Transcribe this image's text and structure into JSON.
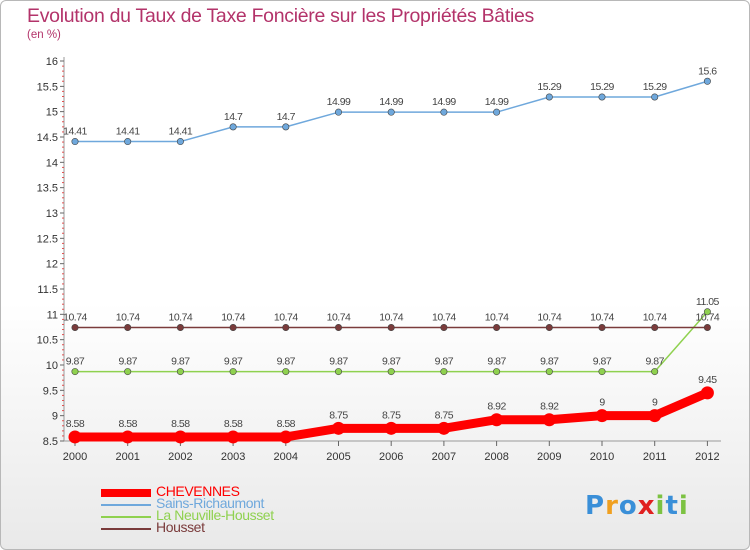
{
  "header": {
    "title": "Evolution du Taux de Taxe Foncière sur les Propriétés Bâties",
    "unit": "(en %)"
  },
  "chart_data": {
    "type": "line",
    "title": "Evolution du Taux de Taxe Foncière sur les Propriétés Bâties",
    "ylabel": "(en %)",
    "xlabel": "",
    "ylim": [
      8.5,
      16
    ],
    "yticks": [
      "8.5",
      "9",
      "9.5",
      "10",
      "10.5",
      "11",
      "11.5",
      "12",
      "12.5",
      "13",
      "13.5",
      "14",
      "14.5",
      "15",
      "15.5",
      "16"
    ],
    "x": [
      "2000",
      "2001",
      "2002",
      "2003",
      "2004",
      "2005",
      "2006",
      "2007",
      "2008",
      "2009",
      "2010",
      "2011",
      "2012"
    ],
    "series": [
      {
        "name": "CHEVENNES",
        "color": "#ff0000",
        "values": [
          8.58,
          8.58,
          8.58,
          8.58,
          8.58,
          8.75,
          8.75,
          8.75,
          8.92,
          8.92,
          9,
          9,
          9.45
        ],
        "labels": [
          "8.58",
          "8.58",
          "8.58",
          "8.58",
          "8.58",
          "8.75",
          "8.75",
          "8.75",
          "8.92",
          "8.92",
          "9",
          "9",
          "9.45"
        ]
      },
      {
        "name": "Sains-Richaumont",
        "color": "#6fa8dc",
        "values": [
          14.41,
          14.41,
          14.41,
          14.7,
          14.7,
          14.99,
          14.99,
          14.99,
          14.99,
          15.29,
          15.29,
          15.29,
          15.6
        ],
        "labels": [
          "14.41",
          "14.41",
          "14.41",
          "14.7",
          "14.7",
          "14.99",
          "14.99",
          "14.99",
          "14.99",
          "15.29",
          "15.29",
          "15.29",
          "15.6"
        ]
      },
      {
        "name": "La Neuville-Housset",
        "color": "#8fd14f",
        "values": [
          9.87,
          9.87,
          9.87,
          9.87,
          9.87,
          9.87,
          9.87,
          9.87,
          9.87,
          9.87,
          9.87,
          9.87,
          11.05
        ],
        "labels": [
          "9.87",
          "9.87",
          "9.87",
          "9.87",
          "9.87",
          "9.87",
          "9.87",
          "9.87",
          "9.87",
          "9.87",
          "9.87",
          "9.87",
          "11.05"
        ]
      },
      {
        "name": "Housset",
        "color": "#7a3b3b",
        "values": [
          10.74,
          10.74,
          10.74,
          10.74,
          10.74,
          10.74,
          10.74,
          10.74,
          10.74,
          10.74,
          10.74,
          10.74,
          10.74
        ],
        "labels": [
          "10.74",
          "10.74",
          "10.74",
          "10.74",
          "10.74",
          "10.74",
          "10.74",
          "10.74",
          "10.74",
          "10.74",
          "10.74",
          "10.74",
          "10.74"
        ]
      }
    ]
  },
  "legend": {
    "items": [
      {
        "label": "CHEVENNES",
        "color": "#ff0000"
      },
      {
        "label": "Sains-Richaumont",
        "color": "#6fa8dc"
      },
      {
        "label": "La Neuville-Housset",
        "color": "#8fd14f"
      },
      {
        "label": "Housset",
        "color": "#7a3b3b"
      }
    ]
  },
  "logo": {
    "letters": [
      "P",
      "r",
      "o",
      "x",
      "i",
      "t",
      "i"
    ],
    "colors": [
      "#3a8fd8",
      "#f0a020",
      "#3a8fd8",
      "#e02020",
      "#7cc242",
      "#3a8fd8",
      "#7cc242"
    ]
  }
}
